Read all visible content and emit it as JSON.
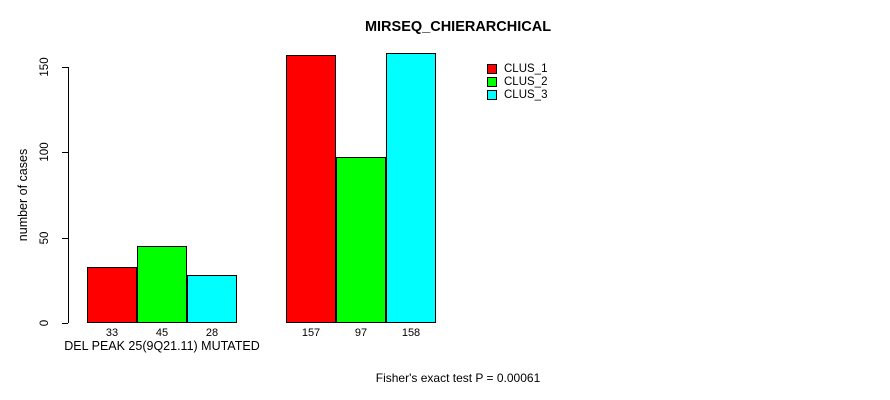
{
  "chart_data": {
    "type": "bar",
    "title": "MIRSEQ_CHIERARCHICAL",
    "ylabel": "number of cases",
    "xlabel": "DEL PEAK 25(9Q21.11) MUTATED",
    "ylim": [
      0,
      150
    ],
    "yticks": [
      "0",
      "50",
      "100",
      "150"
    ],
    "categories": [
      "DEL PEAK 25(9Q21.11) MUTATED",
      ""
    ],
    "series": [
      {
        "name": "CLUS_1",
        "color": "#ff0000",
        "values": [
          33,
          157
        ]
      },
      {
        "name": "CLUS_2",
        "color": "#00ff00",
        "values": [
          45,
          97
        ]
      },
      {
        "name": "CLUS_3",
        "color": "#00ffff",
        "values": [
          28,
          158
        ]
      }
    ],
    "bar_value_labels": [
      [
        33,
        45,
        28
      ],
      [
        157,
        97,
        158
      ]
    ],
    "legend": {
      "position": "top-right",
      "entries": [
        "CLUS_1",
        "CLUS_2",
        "CLUS_3"
      ]
    },
    "grid": false,
    "footnote": "Fisher's exact test P = 0.00061"
  }
}
